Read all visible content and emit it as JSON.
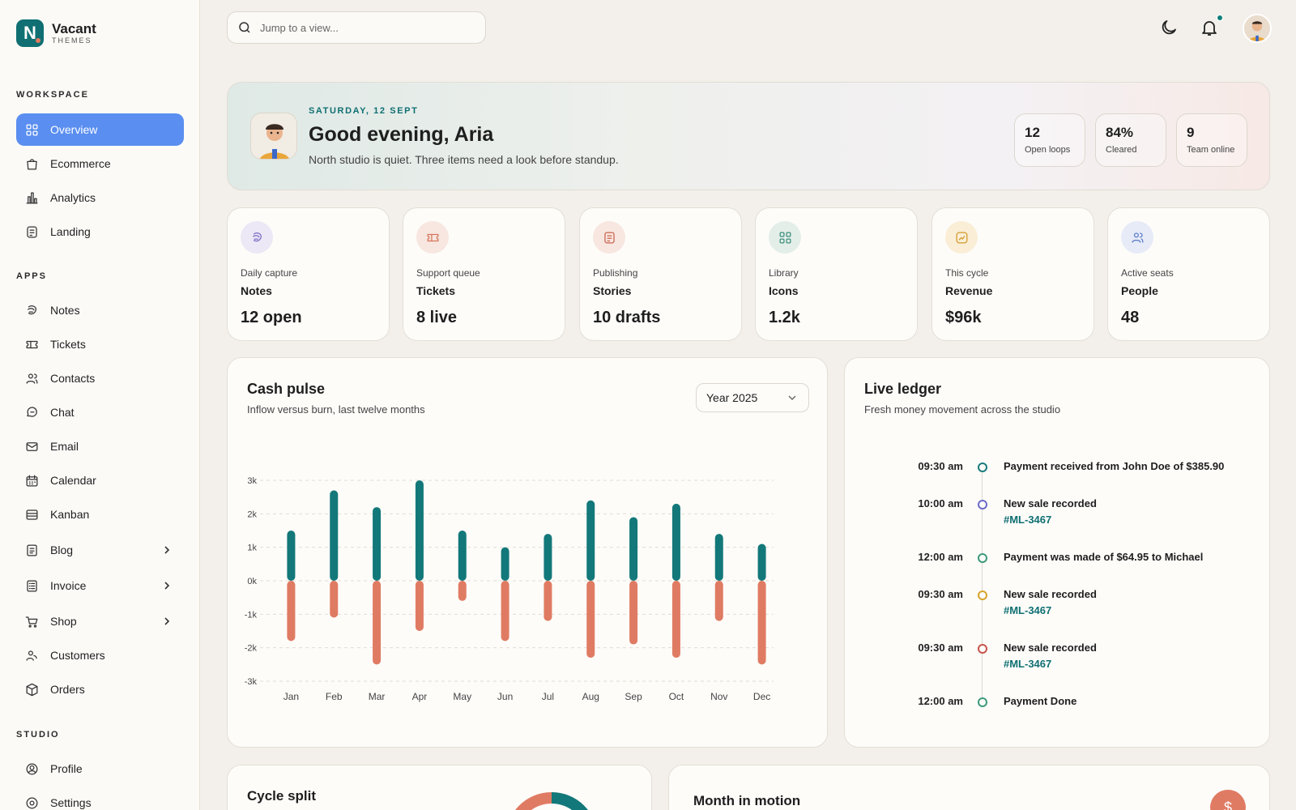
{
  "brand": {
    "name": "Vacant",
    "sub": "THEMES",
    "logo_letter": "N"
  },
  "sidebar": {
    "workspace_label": "WORKSPACE",
    "workspace": [
      {
        "label": "Overview",
        "icon": "grid-icon",
        "active": true
      },
      {
        "label": "Ecommerce",
        "icon": "bag-icon"
      },
      {
        "label": "Analytics",
        "icon": "bar-chart-icon"
      },
      {
        "label": "Landing",
        "icon": "page-icon"
      }
    ],
    "apps_label": "APPS",
    "apps": [
      {
        "label": "Notes",
        "icon": "notes-icon"
      },
      {
        "label": "Tickets",
        "icon": "ticket-icon"
      },
      {
        "label": "Contacts",
        "icon": "contacts-icon"
      },
      {
        "label": "Chat",
        "icon": "chat-icon"
      },
      {
        "label": "Email",
        "icon": "mail-icon"
      },
      {
        "label": "Calendar",
        "icon": "calendar-icon"
      },
      {
        "label": "Kanban",
        "icon": "kanban-icon"
      },
      {
        "label": "Blog",
        "icon": "blog-icon",
        "expandable": true
      },
      {
        "label": "Invoice",
        "icon": "invoice-icon",
        "expandable": true
      },
      {
        "label": "Shop",
        "icon": "cart-icon",
        "expandable": true
      },
      {
        "label": "Customers",
        "icon": "customers-icon"
      },
      {
        "label": "Orders",
        "icon": "box-icon"
      }
    ],
    "studio_label": "STUDIO",
    "studio": [
      {
        "label": "Profile",
        "icon": "profile-icon"
      },
      {
        "label": "Settings",
        "icon": "settings-icon"
      }
    ]
  },
  "topbar": {
    "search_placeholder": "Jump to a view...",
    "icons": [
      "moon-icon",
      "bell-icon",
      "avatar"
    ]
  },
  "hero": {
    "date": "SATURDAY, 12 SEPT",
    "title": "Good evening, Aria",
    "subtitle": "North studio is quiet. Three items need a look before standup.",
    "stats": [
      {
        "value": "12",
        "label": "Open loops"
      },
      {
        "value": "84%",
        "label": "Cleared"
      },
      {
        "value": "9",
        "label": "Team online"
      }
    ]
  },
  "stats": [
    {
      "kicker": "Daily capture",
      "name": "Notes",
      "value": "12 open",
      "icon": "notes-icon",
      "tint": "#ece8f6",
      "color": "#7a6cc4"
    },
    {
      "kicker": "Support queue",
      "name": "Tickets",
      "value": "8 live",
      "icon": "ticket-icon",
      "tint": "#f8e6e0",
      "color": "#d5765b"
    },
    {
      "kicker": "Publishing",
      "name": "Stories",
      "value": "10 drafts",
      "icon": "page-icon",
      "tint": "#f8e6e0",
      "color": "#c9634c"
    },
    {
      "kicker": "Library",
      "name": "Icons",
      "value": "1.2k",
      "icon": "grid-icon",
      "tint": "#e3eee9",
      "color": "#3d8f7a"
    },
    {
      "kicker": "This cycle",
      "name": "Revenue",
      "value": "$96k",
      "icon": "trend-icon",
      "tint": "#faeed6",
      "color": "#d39a2a"
    },
    {
      "kicker": "Active seats",
      "name": "People",
      "value": "48",
      "icon": "contacts-icon",
      "tint": "#e6ebf7",
      "color": "#5a79c8"
    }
  ],
  "cash": {
    "title": "Cash pulse",
    "subtitle": "Inflow versus burn, last twelve months",
    "select": "Year 2025"
  },
  "chart_data": {
    "type": "bar",
    "categories": [
      "Jan",
      "Feb",
      "Mar",
      "Apr",
      "May",
      "Jun",
      "Jul",
      "Aug",
      "Sep",
      "Oct",
      "Nov",
      "Dec"
    ],
    "series": [
      {
        "values": [
          1.5,
          2.7,
          2.2,
          3.0,
          1.5,
          1.0,
          1.4,
          2.4,
          1.9,
          2.3,
          1.4,
          1.1
        ],
        "color": "#137879"
      },
      {
        "values": [
          -1.8,
          -1.1,
          -2.5,
          -1.5,
          -0.6,
          -1.8,
          -1.2,
          -2.3,
          -1.9,
          -2.3,
          -1.2,
          -2.5
        ],
        "color": "#e07b63"
      }
    ],
    "yticks": [
      "3k",
      "2k",
      "1k",
      "0k",
      "-1k",
      "-2k",
      "-3k"
    ],
    "ylim": [
      -3,
      3
    ],
    "grid": true,
    "stacked": true
  },
  "ledger": {
    "title": "Live ledger",
    "subtitle": "Fresh money movement across the studio",
    "items": [
      {
        "time": "09:30 am",
        "text": "Payment received from John Doe of $385.90",
        "link": "",
        "color": "#1b7b7c"
      },
      {
        "time": "10:00 am",
        "text": "New sale recorded",
        "link": "#ML-3467",
        "color": "#6b6cc9"
      },
      {
        "time": "12:00 am",
        "text": "Payment was made of $64.95 to Michael",
        "link": "",
        "color": "#3d9a7c"
      },
      {
        "time": "09:30 am",
        "text": "New sale recorded",
        "link": "#ML-3467",
        "color": "#d8a42a"
      },
      {
        "time": "09:30 am",
        "text": "New sale recorded",
        "link": "#ML-3467",
        "color": "#c8554a"
      },
      {
        "time": "12:00 am",
        "text": "Payment Done",
        "link": "",
        "color": "#3d9a7c"
      }
    ]
  },
  "bottom": {
    "cycle_title": "Cycle split",
    "month_title": "Month in motion",
    "currency_symbol": "$"
  }
}
